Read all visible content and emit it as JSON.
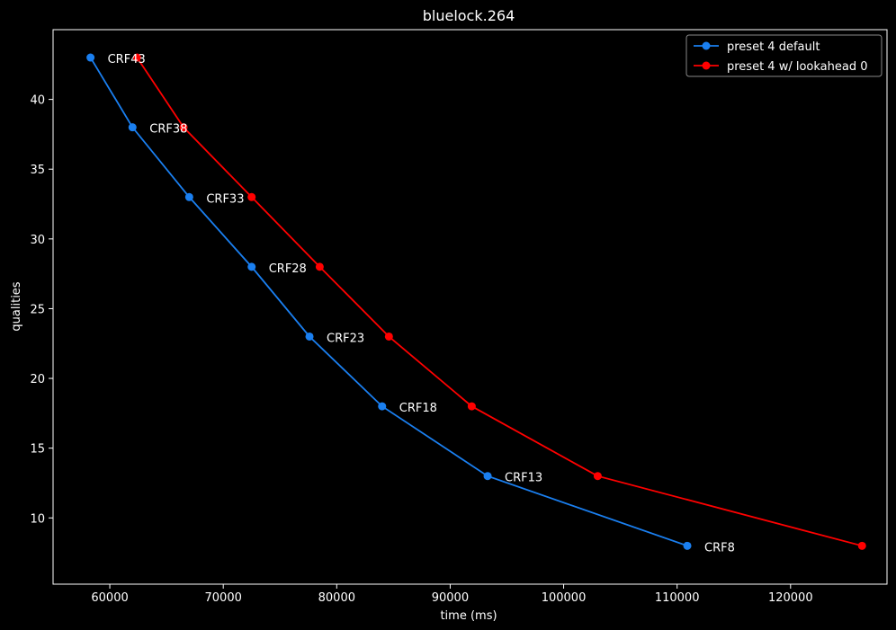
{
  "chart_data": {
    "type": "line",
    "title": "bluelock.264",
    "xlabel": "time (ms)",
    "ylabel": "qualities",
    "xlim": [
      55000,
      128500
    ],
    "ylim": [
      5.25,
      45.0
    ],
    "x_ticks": [
      60000,
      70000,
      80000,
      90000,
      100000,
      110000,
      120000
    ],
    "y_ticks": [
      10,
      15,
      20,
      25,
      30,
      35,
      40
    ],
    "legend_position": "top-right",
    "series": [
      {
        "name": "preset 4 default",
        "color": "#1a7ff0",
        "x": [
          58300,
          62000,
          67000,
          72500,
          77600,
          84000,
          93300,
          110900
        ],
        "y": [
          43,
          38,
          33,
          28,
          23,
          18,
          13,
          8
        ]
      },
      {
        "name": "preset 4 w/ lookahead 0",
        "color": "#ff0000",
        "x": [
          62400,
          66500,
          72500,
          78500,
          84600,
          91900,
          103000,
          126300
        ],
        "y": [
          43,
          38,
          33,
          28,
          23,
          18,
          13,
          8
        ]
      }
    ],
    "annotations": [
      {
        "text": "CRF43",
        "x": 58300,
        "y": 43
      },
      {
        "text": "CRF38",
        "x": 62000,
        "y": 38
      },
      {
        "text": "CRF33",
        "x": 67000,
        "y": 33
      },
      {
        "text": "CRF28",
        "x": 72500,
        "y": 28
      },
      {
        "text": "CRF23",
        "x": 77600,
        "y": 23
      },
      {
        "text": "CRF18",
        "x": 84000,
        "y": 18
      },
      {
        "text": "CRF13",
        "x": 93300,
        "y": 13
      },
      {
        "text": "CRF8",
        "x": 110900,
        "y": 8
      }
    ]
  }
}
